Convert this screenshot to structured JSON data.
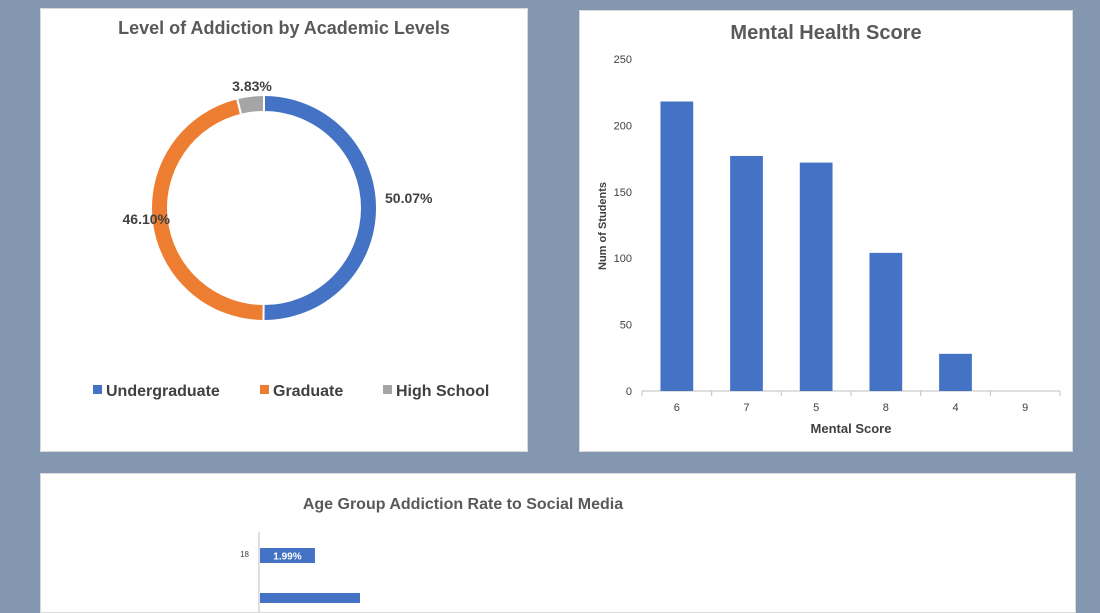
{
  "chart_data": [
    {
      "type": "pie",
      "title": "Level of Addiction by Academic Levels",
      "categories": [
        "Undergraduate",
        "Graduate",
        "High School"
      ],
      "values": [
        50.07,
        46.1,
        3.83
      ],
      "labels": [
        "50.07%",
        "46.10%",
        "3.83%"
      ],
      "colors": [
        "#4472c4",
        "#ed7d31",
        "#a5a5a5"
      ],
      "legend": "bottom"
    },
    {
      "type": "bar",
      "title": "Mental Health Score",
      "categories": [
        "6",
        "7",
        "5",
        "8",
        "4",
        "9"
      ],
      "values": [
        218,
        177,
        172,
        104,
        28,
        0
      ],
      "xlabel": "Mental Score",
      "ylabel": "Num of Students",
      "ylim": [
        0,
        250
      ],
      "yticks": [
        "0",
        "50",
        "100",
        "150",
        "200",
        "250"
      ],
      "color": "#4472c4"
    },
    {
      "type": "bar",
      "title": "Age Group Addiction Rate to Social Media",
      "categories": [
        "18"
      ],
      "values": [
        1.99
      ],
      "labels": [
        "1.99%"
      ],
      "color": "#4472c4"
    }
  ]
}
